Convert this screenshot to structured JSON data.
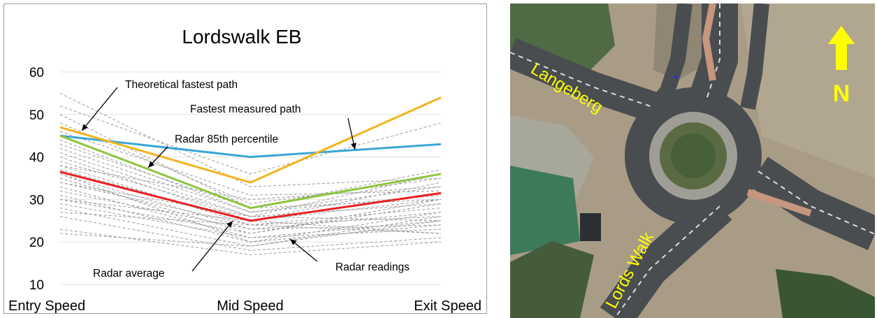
{
  "chart_data": {
    "type": "line",
    "title": "Lordswalk EB",
    "categories": [
      "Entry Speed",
      "Mid Speed",
      "Exit Speed"
    ],
    "ylim": [
      10,
      60
    ],
    "yticks": [
      10,
      20,
      30,
      40,
      50,
      60
    ],
    "grid": true,
    "series": [
      {
        "name": "Theoretical fastest path",
        "color": "#3aa6d8",
        "values": [
          45,
          40,
          43
        ]
      },
      {
        "name": "Fastest measured path",
        "color": "#f2b41c",
        "values": [
          47,
          34,
          54
        ]
      },
      {
        "name": "Radar 85th percentile",
        "color": "#8cc63e",
        "values": [
          45,
          28,
          36
        ]
      },
      {
        "name": "Radar average",
        "color": "#e8201f",
        "values": [
          36.5,
          25,
          31.5
        ]
      }
    ],
    "radar_readings": {
      "name": "Radar readings",
      "color": "#9a9a9a",
      "lines": [
        [
          55,
          33,
          35
        ],
        [
          52,
          36,
          48
        ],
        [
          50,
          28,
          37
        ],
        [
          48,
          29,
          35
        ],
        [
          46,
          31,
          32
        ],
        [
          44,
          27,
          33
        ],
        [
          42,
          27,
          31
        ],
        [
          41,
          26,
          36
        ],
        [
          40,
          25,
          30
        ],
        [
          39,
          26,
          29
        ],
        [
          38,
          24,
          28
        ],
        [
          37,
          25,
          34
        ],
        [
          36,
          23,
          27
        ],
        [
          35,
          22,
          30
        ],
        [
          34,
          24,
          26
        ],
        [
          33,
          21,
          25
        ],
        [
          32,
          23,
          24
        ],
        [
          31,
          20,
          27
        ],
        [
          30,
          22,
          29
        ],
        [
          29,
          21,
          23
        ],
        [
          28,
          19,
          25
        ],
        [
          27,
          24,
          22
        ],
        [
          26,
          18,
          21
        ],
        [
          23,
          17,
          20
        ],
        [
          22,
          19,
          26
        ],
        [
          38,
          30,
          33
        ],
        [
          34,
          26,
          25
        ],
        [
          30,
          25,
          22
        ],
        [
          43,
          28,
          30
        ],
        [
          36,
          20,
          24
        ]
      ]
    },
    "annotations": [
      {
        "text": "Theoretical fastest path"
      },
      {
        "text": "Fastest measured path"
      },
      {
        "text": "Radar 85th percentile"
      },
      {
        "text": "Radar average"
      },
      {
        "text": "Radar readings"
      }
    ]
  },
  "map": {
    "labels": {
      "langeberg": "Langeberg",
      "lordswalk": "Lords Walk",
      "north": "N"
    },
    "colors": {
      "label_yellow": "#ffff00",
      "road": "#4a4d50",
      "ground": "#a39883",
      "vegetation": "#3e5a3a",
      "roof": "#3d7a5a"
    }
  }
}
